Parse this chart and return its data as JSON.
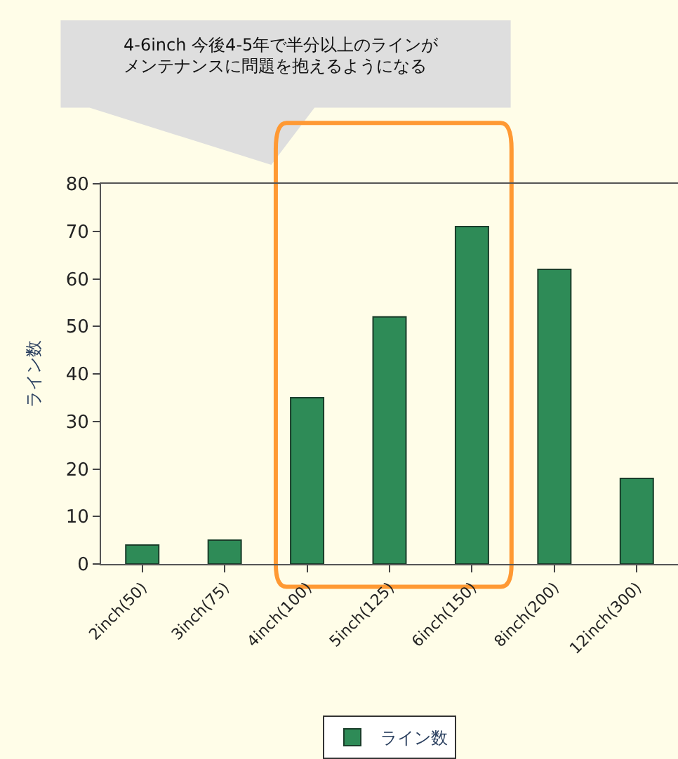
{
  "chart_data": {
    "type": "bar",
    "ylabel": "ライン数",
    "categories": [
      "2inch(50)",
      "3inch(75)",
      "4inch(100)",
      "5inch(125)",
      "6inch(150)",
      "8inch(200)",
      "12inch(300)"
    ],
    "series": [
      {
        "name": "ライン数",
        "color": "#2e8b57",
        "values": [
          4,
          5,
          35,
          52,
          71,
          62,
          18
        ]
      }
    ],
    "ylim": [
      0,
      80
    ],
    "yticks": [
      0,
      10,
      20,
      30,
      40,
      50,
      60,
      70,
      80
    ],
    "grid": false,
    "legend": "bottom",
    "annotations": [
      "4-6inch 今後4-5年で半分以上のラインが",
      "メンテナンスに問題を抱えるようになる"
    ]
  }
}
